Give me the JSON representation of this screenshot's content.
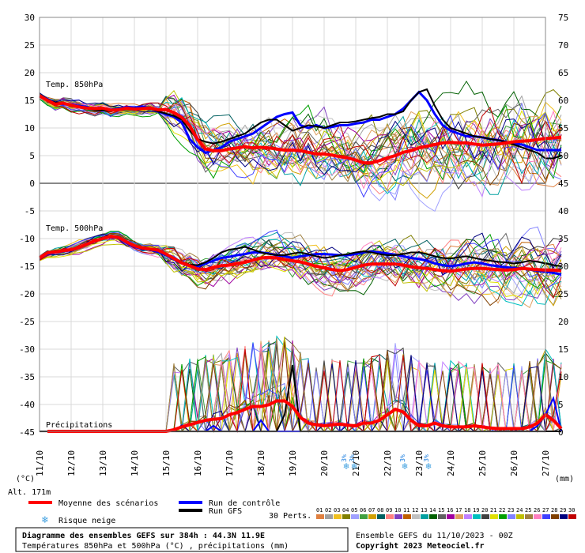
{
  "chart_data": {
    "type": "line",
    "title": "Diagramme des ensembles GEFS sur 384h : 44.3N 11.9E",
    "subtitle": "Températures 850hPa et 500hPa (°C) , précipitations (mm)",
    "x_labels": [
      "11/10",
      "12/10",
      "13/10",
      "14/10",
      "15/10",
      "16/10",
      "17/10",
      "18/10",
      "19/10",
      "20/10",
      "21/10",
      "22/10",
      "23/10",
      "24/10",
      "25/10",
      "26/10",
      "27/10"
    ],
    "y_left_ticks": [
      30,
      25,
      20,
      15,
      10,
      5,
      0,
      -5,
      -10,
      -15,
      -20,
      -25,
      -30,
      -35,
      -40,
      -45
    ],
    "y_right_ticks": [
      75,
      70,
      65,
      60,
      55,
      50,
      45,
      40,
      35,
      30,
      25,
      20,
      15,
      10,
      5,
      0
    ],
    "y_left_unit": "(°C)",
    "y_right_unit": "(mm)",
    "altitude_label": "Alt. 171m",
    "panel_labels": {
      "t850": "Temp. 850hPa",
      "t500": "Temp. 500hPa",
      "precip": "Précipitations"
    },
    "legend": {
      "mean": "Moyenne des scénarios",
      "control": "Run de contrôle",
      "gfs": "Run GFS",
      "snow": "Risque neige",
      "perts_label": "30 Perts.",
      "pert_numbers": [
        "01",
        "02",
        "03",
        "04",
        "05",
        "06",
        "07",
        "08",
        "09",
        "10",
        "11",
        "12",
        "13",
        "14",
        "15",
        "16",
        "17",
        "18",
        "19",
        "20",
        "21",
        "22",
        "23",
        "24",
        "25",
        "26",
        "27",
        "28",
        "29",
        "30"
      ]
    },
    "colors": {
      "mean": "#ff0000",
      "control": "#0000ff",
      "gfs": "#000000",
      "perts": [
        "#e08040",
        "#a0a0a0",
        "#f0c020",
        "#808000",
        "#a0a0ff",
        "#40a040",
        "#d0a000",
        "#006060",
        "#ff8080",
        "#8040c0",
        "#c06000",
        "#c0c0c0",
        "#00a0a0",
        "#006000",
        "#606060",
        "#a000a0",
        "#e0a060",
        "#c080ff",
        "#00c0c0",
        "#404040",
        "#e0e000",
        "#00a000",
        "#8080ff",
        "#c0c000",
        "#a08040",
        "#ff80c0",
        "#4040ff",
        "#804000",
        "#000080",
        "#c00000"
      ]
    },
    "snow_markers": [
      {
        "x": 9.7,
        "label": "3%"
      },
      {
        "x": 9.95,
        "label": "3%"
      },
      {
        "x": 11.55,
        "label": "3%"
      },
      {
        "x": 12.3,
        "label": "3%"
      }
    ],
    "steps_per_day": 4,
    "mean_850": [
      15.8,
      15.0,
      14.3,
      14.5,
      14.1,
      13.8,
      13.6,
      13.5,
      13.6,
      13.2,
      13.3,
      13.6,
      13.4,
      13.5,
      13.6,
      13.3,
      13.3,
      12.8,
      11.9,
      10.4,
      7.9,
      6.2,
      5.9,
      5.9,
      6.2,
      6.4,
      6.6,
      6.4,
      6.5,
      6.4,
      6.2,
      6.0,
      6.0,
      5.9,
      5.6,
      5.3,
      5.3,
      5.1,
      4.8,
      4.6,
      4.2,
      3.7,
      3.7,
      4.1,
      4.6,
      5.0,
      5.6,
      5.9,
      6.4,
      6.7,
      7.0,
      7.3,
      7.4,
      7.3,
      7.3,
      7.1,
      6.9,
      7.0,
      7.1,
      7.3,
      7.5,
      7.6,
      7.7,
      7.9,
      8.1,
      8.2,
      8.3
    ],
    "mean_500": [
      -13.5,
      -12.6,
      -12.4,
      -12.2,
      -12.0,
      -11.6,
      -11.0,
      -10.4,
      -10.0,
      -9.6,
      -9.8,
      -10.6,
      -11.3,
      -11.7,
      -11.9,
      -12.1,
      -12.8,
      -13.6,
      -14.4,
      -14.9,
      -15.5,
      -15.6,
      -15.2,
      -14.9,
      -14.8,
      -14.5,
      -14.3,
      -13.9,
      -13.5,
      -13.4,
      -13.5,
      -13.8,
      -14.0,
      -14.2,
      -14.6,
      -15.0,
      -15.3,
      -15.6,
      -15.8,
      -15.6,
      -15.2,
      -14.8,
      -14.6,
      -14.6,
      -14.6,
      -14.6,
      -14.8,
      -15.1,
      -15.3,
      -15.4,
      -15.6,
      -15.8,
      -15.9,
      -15.7,
      -15.5,
      -15.4,
      -15.4,
      -15.5,
      -15.6,
      -15.7,
      -15.6,
      -15.4,
      -15.5,
      -15.6,
      -15.7,
      -15.7,
      -15.8
    ],
    "mean_precip": [
      0,
      0,
      0,
      0,
      0,
      0,
      0,
      0,
      0,
      0,
      0,
      0,
      0,
      0,
      0,
      0,
      0,
      0.3,
      0.8,
      1.2,
      1.6,
      2.0,
      2.2,
      2.3,
      3.0,
      3.4,
      4.0,
      4.5,
      4.5,
      4.8,
      5.5,
      5.5,
      4.5,
      2.5,
      1.5,
      1.2,
      1.0,
      1.2,
      1.3,
      1.1,
      1.0,
      1.5,
      1.5,
      2.0,
      3.0,
      4.0,
      3.5,
      2.0,
      1.0,
      1.0,
      1.5,
      1.0,
      0.8,
      0.8,
      0.8,
      1.0,
      0.8,
      0.6,
      0.5,
      0.5,
      0.5,
      0.5,
      0.8,
      1.5,
      3.0,
      2.0,
      0.5
    ],
    "control_850": [
      15.8,
      15.0,
      14.5,
      14.3,
      14.2,
      14.0,
      13.8,
      13.4,
      13.6,
      13.3,
      13.5,
      13.8,
      13.6,
      13.9,
      13.5,
      13.0,
      12.5,
      12.0,
      11.0,
      8.0,
      6.5,
      5.5,
      6.0,
      6.5,
      7.5,
      8.0,
      8.5,
      9.0,
      10.0,
      11.0,
      12.0,
      12.5,
      12.8,
      10.5,
      10.0,
      10.5,
      10.0,
      10.2,
      10.5,
      10.5,
      10.8,
      11.0,
      11.5,
      11.5,
      12.0,
      12.5,
      13.5,
      15.0,
      16.5,
      15.0,
      12.5,
      10.5,
      9.5,
      9.0,
      8.5,
      8.5,
      8.3,
      8.0,
      7.8,
      7.5,
      7.2,
      7.0,
      6.5,
      6.0,
      6.0,
      6.0,
      6.0
    ],
    "gfs_850": [
      15.8,
      15.0,
      14.6,
      14.5,
      14.2,
      13.9,
      13.5,
      13.2,
      13.2,
      13.0,
      13.3,
      13.5,
      13.6,
      13.4,
      13.5,
      13.0,
      12.6,
      12.2,
      11.5,
      9.5,
      8.0,
      7.5,
      7.2,
      7.5,
      8.0,
      8.5,
      9.0,
      10.0,
      11.0,
      11.5,
      11.5,
      10.5,
      9.5,
      10.0,
      10.5,
      10.3,
      10.0,
      10.5,
      11.0,
      11.0,
      11.2,
      11.5,
      11.8,
      12.0,
      12.5,
      12.5,
      13.0,
      15.0,
      16.5,
      17.0,
      14.0,
      11.5,
      10.0,
      9.5,
      9.0,
      8.5,
      8.3,
      8.0,
      7.8,
      7.5,
      7.0,
      6.5,
      6.0,
      5.5,
      4.5,
      4.5,
      5.0
    ],
    "control_500": [
      -13.5,
      -12.8,
      -12.5,
      -12.3,
      -12.1,
      -11.7,
      -11.1,
      -10.5,
      -10.0,
      -9.7,
      -9.9,
      -10.8,
      -11.5,
      -11.8,
      -12.0,
      -12.4,
      -13.0,
      -13.8,
      -14.5,
      -14.8,
      -15.0,
      -14.5,
      -14.0,
      -13.5,
      -13.3,
      -13.0,
      -12.8,
      -12.5,
      -12.5,
      -12.7,
      -13.0,
      -13.2,
      -13.5,
      -13.2,
      -13.0,
      -12.8,
      -12.8,
      -12.9,
      -13.0,
      -13.0,
      -12.8,
      -12.5,
      -12.3,
      -12.5,
      -12.7,
      -12.9,
      -13.2,
      -13.5,
      -13.7,
      -14.0,
      -14.5,
      -14.8,
      -15.0,
      -14.8,
      -14.5,
      -14.3,
      -14.5,
      -14.8,
      -15.0,
      -15.2,
      -15.3,
      -15.4,
      -15.6,
      -15.8,
      -16.0,
      -16.2,
      -16.5
    ],
    "gfs_500": [
      -13.5,
      -12.7,
      -12.4,
      -12.2,
      -12.0,
      -11.6,
      -11.0,
      -10.3,
      -9.8,
      -9.5,
      -9.7,
      -10.5,
      -11.2,
      -11.6,
      -11.8,
      -12.2,
      -12.9,
      -13.5,
      -14.2,
      -14.7,
      -14.8,
      -14.3,
      -13.5,
      -12.5,
      -12.0,
      -11.8,
      -11.5,
      -12.0,
      -12.5,
      -12.8,
      -13.0,
      -13.0,
      -12.7,
      -12.5,
      -12.8,
      -13.2,
      -13.5,
      -13.3,
      -13.0,
      -12.8,
      -12.5,
      -12.3,
      -12.5,
      -12.8,
      -13.0,
      -13.0,
      -12.8,
      -12.5,
      -12.5,
      -12.8,
      -13.2,
      -13.5,
      -13.6,
      -13.4,
      -13.2,
      -13.5,
      -13.8,
      -14.0,
      -14.2,
      -14.3,
      -14.5,
      -14.3,
      -14.0,
      -14.2,
      -14.5,
      -14.8,
      -15.0
    ],
    "control_precip": [
      0,
      0,
      0,
      0,
      0,
      0,
      0,
      0,
      0,
      0,
      0,
      0,
      0,
      0,
      0,
      0,
      0,
      0,
      0,
      0,
      0,
      0,
      1,
      0,
      0,
      0,
      0,
      0,
      2,
      0,
      0,
      0,
      0,
      0,
      0,
      0,
      0,
      0,
      0,
      0,
      0,
      0,
      0,
      0,
      0,
      0,
      0,
      0,
      0,
      0,
      0,
      0,
      0,
      0,
      0,
      0,
      0,
      0,
      0,
      0,
      0,
      0,
      0,
      1,
      3,
      6,
      0
    ],
    "gfs_precip": [
      0,
      0,
      0,
      0,
      0,
      0,
      0,
      0,
      0,
      0,
      0,
      0,
      0,
      0,
      0,
      0,
      0,
      0,
      0,
      0,
      0,
      0,
      0,
      0,
      0,
      0,
      0,
      0,
      0,
      0,
      0,
      3,
      12,
      0,
      0,
      0,
      0,
      0,
      0,
      0,
      0,
      0,
      0,
      0,
      0,
      0,
      0,
      0,
      0,
      0,
      0,
      0,
      0,
      0,
      0,
      0,
      0,
      0,
      0,
      0,
      0,
      0,
      0,
      0,
      0,
      0,
      0
    ]
  },
  "footer": {
    "title": "Diagramme des ensembles GEFS sur 384h : 44.3N 11.9E",
    "subtitle": "Températures 850hPa et 500hPa (°C) , précipitations (mm)",
    "run": "Ensemble GEFS du 11/10/2023 - 00Z",
    "copyright": "Copyright 2023 Meteociel.fr"
  }
}
